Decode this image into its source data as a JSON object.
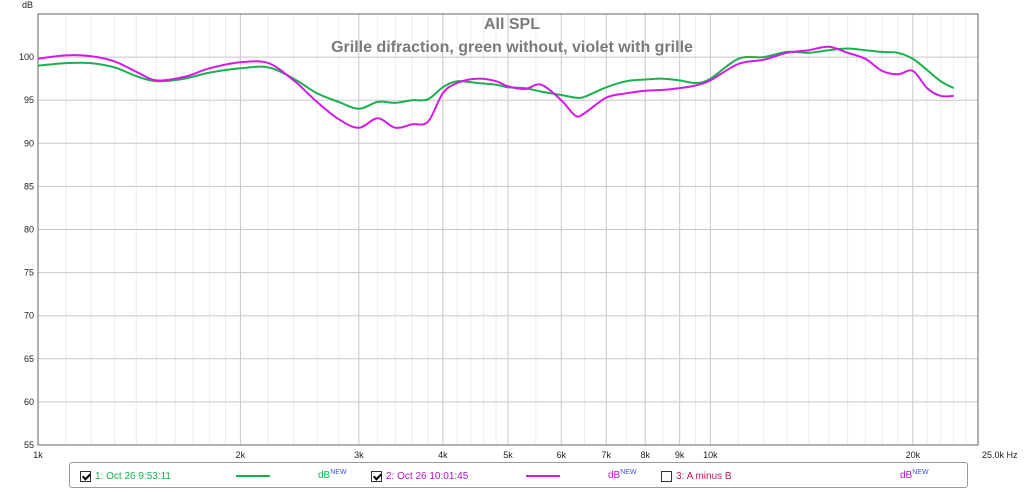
{
  "chart_data": {
    "type": "line",
    "title": "All SPL",
    "subtitle": "Grille difraction, green without, violet with grille",
    "ylabel": "dB",
    "xlabel": "",
    "x_scale": "log",
    "xlim": [
      1000,
      25000
    ],
    "ylim": [
      55,
      105
    ],
    "y_ticks": [
      "100",
      "95",
      "90",
      "85",
      "80",
      "75",
      "70",
      "65",
      "60",
      "55"
    ],
    "y_tick_values": [
      100,
      95,
      90,
      85,
      80,
      75,
      70,
      65,
      60,
      55
    ],
    "x_major_ticks": [
      {
        "value": 1000,
        "label": "1k"
      },
      {
        "value": 2000,
        "label": "2k"
      },
      {
        "value": 3000,
        "label": "3k"
      },
      {
        "value": 4000,
        "label": "4k"
      },
      {
        "value": 5000,
        "label": "5k"
      },
      {
        "value": 6000,
        "label": "6k"
      },
      {
        "value": 7000,
        "label": "7k"
      },
      {
        "value": 8000,
        "label": "8k"
      },
      {
        "value": 9000,
        "label": "9k"
      },
      {
        "value": 10000,
        "label": "10k"
      },
      {
        "value": 20000,
        "label": "20k"
      },
      {
        "value": 25000,
        "label": "25.0k Hz"
      }
    ],
    "x_minor_ticks": [
      1100,
      1200,
      1300,
      1400,
      1500,
      1600,
      1700,
      1800,
      1900,
      2200,
      2400,
      2600,
      2800,
      3200,
      3400,
      3600,
      3800,
      4200,
      4400,
      4600,
      4800,
      5500,
      6500,
      7500,
      8500,
      9500,
      11000,
      12000,
      13000,
      14000,
      15000,
      16000,
      17000,
      18000,
      19000,
      21000,
      22000,
      23000,
      24000
    ],
    "grid": true,
    "series": [
      {
        "name": "1: Oct 26 9:53:11",
        "color": "#1ab04e",
        "x": [
          1000,
          1100,
          1200,
          1300,
          1400,
          1500,
          1650,
          1800,
          2000,
          2200,
          2400,
          2600,
          2800,
          3000,
          3200,
          3400,
          3600,
          3800,
          4000,
          4200,
          4500,
          4800,
          5000,
          5300,
          5600,
          6000,
          6300,
          6500,
          7000,
          7500,
          8000,
          8500,
          9000,
          9500,
          10000,
          11000,
          12000,
          13000,
          14000,
          15000,
          16000,
          17000,
          18000,
          19000,
          20000,
          21000,
          22000,
          23000
        ],
        "y": [
          99.0,
          99.3,
          99.3,
          98.8,
          97.8,
          97.2,
          97.5,
          98.2,
          98.7,
          98.8,
          97.5,
          95.8,
          94.8,
          94.0,
          94.8,
          94.7,
          95.0,
          95.1,
          96.5,
          97.2,
          97.0,
          96.8,
          96.5,
          96.4,
          96.0,
          95.6,
          95.3,
          95.4,
          96.5,
          97.2,
          97.4,
          97.5,
          97.3,
          97.0,
          97.5,
          99.8,
          100.0,
          100.6,
          100.5,
          100.8,
          101.0,
          100.8,
          100.6,
          100.5,
          99.8,
          98.5,
          97.2,
          96.4
        ]
      },
      {
        "name": "2: Oct 26 10:01:45",
        "color": "#d419e8",
        "x": [
          1000,
          1100,
          1200,
          1300,
          1400,
          1500,
          1650,
          1800,
          2000,
          2200,
          2400,
          2600,
          2800,
          3000,
          3200,
          3400,
          3600,
          3800,
          4000,
          4200,
          4500,
          4800,
          5000,
          5300,
          5600,
          6000,
          6300,
          6500,
          7000,
          7500,
          8000,
          8500,
          9000,
          9500,
          10000,
          11000,
          12000,
          13000,
          14000,
          15000,
          16000,
          17000,
          18000,
          19000,
          20000,
          21000,
          22000,
          23000
        ],
        "y": [
          99.8,
          100.2,
          100.1,
          99.5,
          98.3,
          97.3,
          97.7,
          98.7,
          99.4,
          99.3,
          97.3,
          94.8,
          92.8,
          91.8,
          92.9,
          91.8,
          92.2,
          92.5,
          95.8,
          97.0,
          97.5,
          97.2,
          96.6,
          96.3,
          96.8,
          95.0,
          93.2,
          93.5,
          95.3,
          95.8,
          96.1,
          96.2,
          96.4,
          96.7,
          97.3,
          99.2,
          99.7,
          100.5,
          100.8,
          101.2,
          100.5,
          99.8,
          98.4,
          98.0,
          98.4,
          96.4,
          95.5,
          95.5
        ]
      }
    ],
    "legend_position": "bottom"
  },
  "legend": {
    "item1_label": "1: Oct 26 9:53:11",
    "item1_checked": true,
    "item1_color": "#1ab04e",
    "item2_label": "2: Oct 26 10:01:45",
    "item2_checked": true,
    "item2_color": "#d419e8",
    "item3_label": "3: A minus B",
    "item3_checked": false,
    "item3_color": "#c2185b",
    "unit_base": "dB",
    "unit_sup": "NEW"
  }
}
